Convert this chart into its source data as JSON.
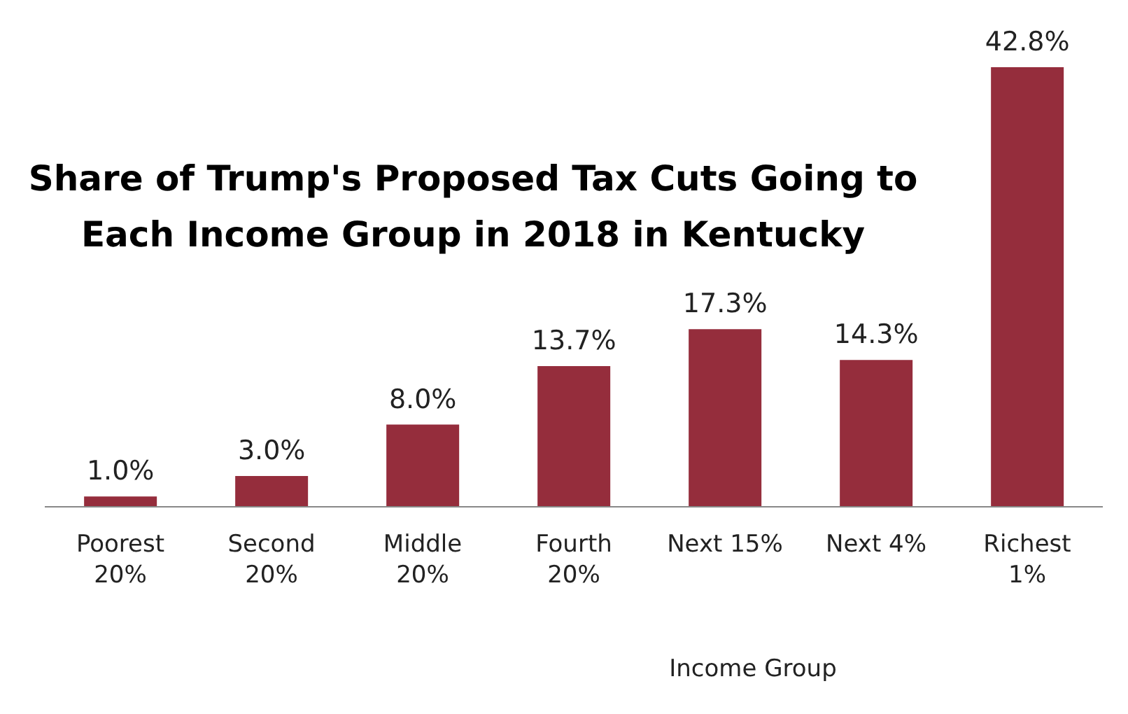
{
  "chart_data": {
    "type": "bar",
    "title": "Share of Trump's Proposed Tax Cuts Going to Each Income Group in 2018 in Kentucky",
    "xlabel": "Income Group",
    "categories": [
      "Poorest 20%",
      "Second 20%",
      "Middle 20%",
      "Fourth 20%",
      "Next 15%",
      "Next 4%",
      "Richest 1%"
    ],
    "values": [
      1.0,
      3.0,
      8.0,
      13.7,
      17.3,
      14.3,
      42.8
    ],
    "value_labels": [
      "1.0%",
      "3.0%",
      "8.0%",
      "13.7%",
      "17.3%",
      "14.3%",
      "42.8%"
    ],
    "color": "#952d3c"
  }
}
